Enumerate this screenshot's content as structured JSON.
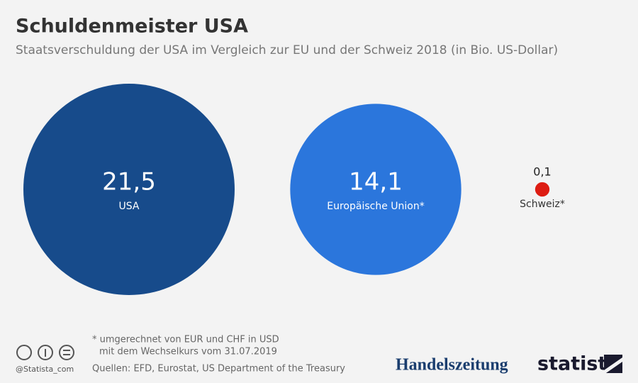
{
  "chart_data": {
    "type": "bubble",
    "title": "Schuldenmeister USA",
    "subtitle": "Staatsverschuldung der USA im Vergleich zur EU und der Schweiz 2018 (in Bio. US-Dollar)",
    "categories": [
      "USA",
      "Europäische Union*",
      "Schweiz*"
    ],
    "values": [
      21.5,
      14.1,
      0.1
    ],
    "value_labels": [
      "21,5",
      "14,1",
      "0,1"
    ],
    "colors": [
      "#174b8b",
      "#2b76dc",
      "#dd1c12"
    ]
  },
  "footer": {
    "note": [
      "* umgerechnet von EUR und CHF in USD",
      "mit dem Wechselkurs vom 31.07.2019"
    ],
    "sources": "Quellen: EFD, Eurostat, US Department of the Treasury",
    "handle": "@Statista_com",
    "partner": "Handelszeitung",
    "brand": "statista"
  }
}
